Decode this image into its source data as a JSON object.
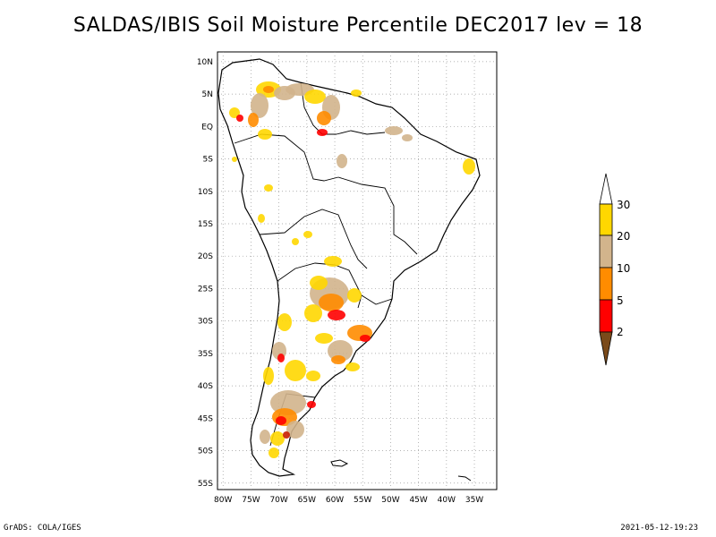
{
  "title": "SALDAS/IBIS Soil Moisture Percentile DEC2017 lev = 18",
  "footer": {
    "left": "GrADS: COLA/IGES",
    "right": "2021-05-12-19:23"
  },
  "axes": {
    "lon_labels": [
      "80W",
      "75W",
      "70W",
      "65W",
      "60W",
      "55W",
      "50W",
      "45W",
      "40W",
      "35W"
    ],
    "lon_values": [
      -80,
      -75,
      -70,
      -65,
      -60,
      -55,
      -50,
      -45,
      -40,
      -35
    ],
    "lat_labels": [
      "10N",
      "5N",
      "EQ",
      "5S",
      "10S",
      "15S",
      "20S",
      "25S",
      "30S",
      "35S",
      "40S",
      "45S",
      "50S",
      "55S"
    ],
    "lat_values": [
      10,
      5,
      0,
      -5,
      -10,
      -15,
      -20,
      -25,
      -30,
      -35,
      -40,
      -45,
      -50,
      -55
    ],
    "lon_range": [
      -81,
      -31
    ],
    "lat_range": [
      11.5,
      -56
    ]
  },
  "colorbar": {
    "labels": [
      "2",
      "5",
      "10",
      "20",
      "30"
    ],
    "colors": [
      "#7a4a1a",
      "#ff0000",
      "#ff8c00",
      "#d2b48c",
      "#ffd700",
      "#ffffff"
    ]
  },
  "colors": {
    "drought_2": "#c81e00",
    "drought_5": "#ff0000",
    "drought_10": "#ff8c00",
    "drought_20": "#d2b48c",
    "drought_30": "#ffd700",
    "grid": "#999999"
  }
}
